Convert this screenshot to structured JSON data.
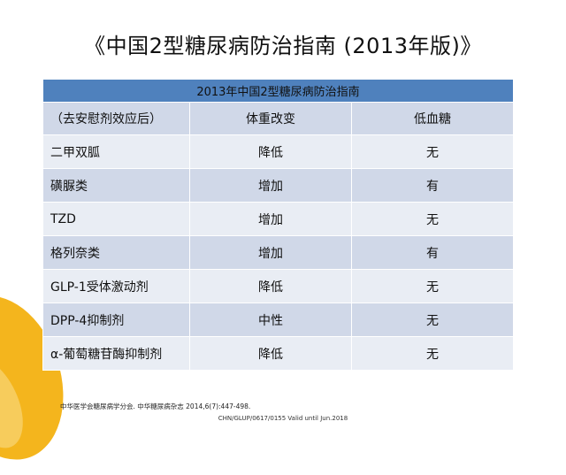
{
  "slide": {
    "title": "《中国2型糖尿病防治指南 (2013年版)》"
  },
  "table": {
    "caption": "2013年中国2型糖尿病防治指南",
    "headers": [
      "（去安慰剂效应后）",
      "体重改变",
      "低血糖"
    ],
    "rows": [
      [
        "二甲双胍",
        "降低",
        "无"
      ],
      [
        "磺脲类",
        "增加",
        "有"
      ],
      [
        "TZD",
        "增加",
        "无"
      ],
      [
        "格列奈类",
        "增加",
        "有"
      ],
      [
        "GLP-1受体激动剂",
        "降低",
        "无"
      ],
      [
        "DPP-4抑制剂",
        "中性",
        "无"
      ],
      [
        "α-葡萄糖苷酶抑制剂",
        "降低",
        "无"
      ]
    ]
  },
  "footer": {
    "reference": "中华医学会糖尿病学分会. 中华糖尿病杂志 2014,6(7):447-498.",
    "code": "CHN/GLUP/0617/0155    Valid until Jun.2018"
  },
  "colors": {
    "header_blue": "#4f81bd",
    "row_light": "#e9edf4",
    "row_dark": "#d0d8e8",
    "accent_yellow": "#f4b51d"
  }
}
